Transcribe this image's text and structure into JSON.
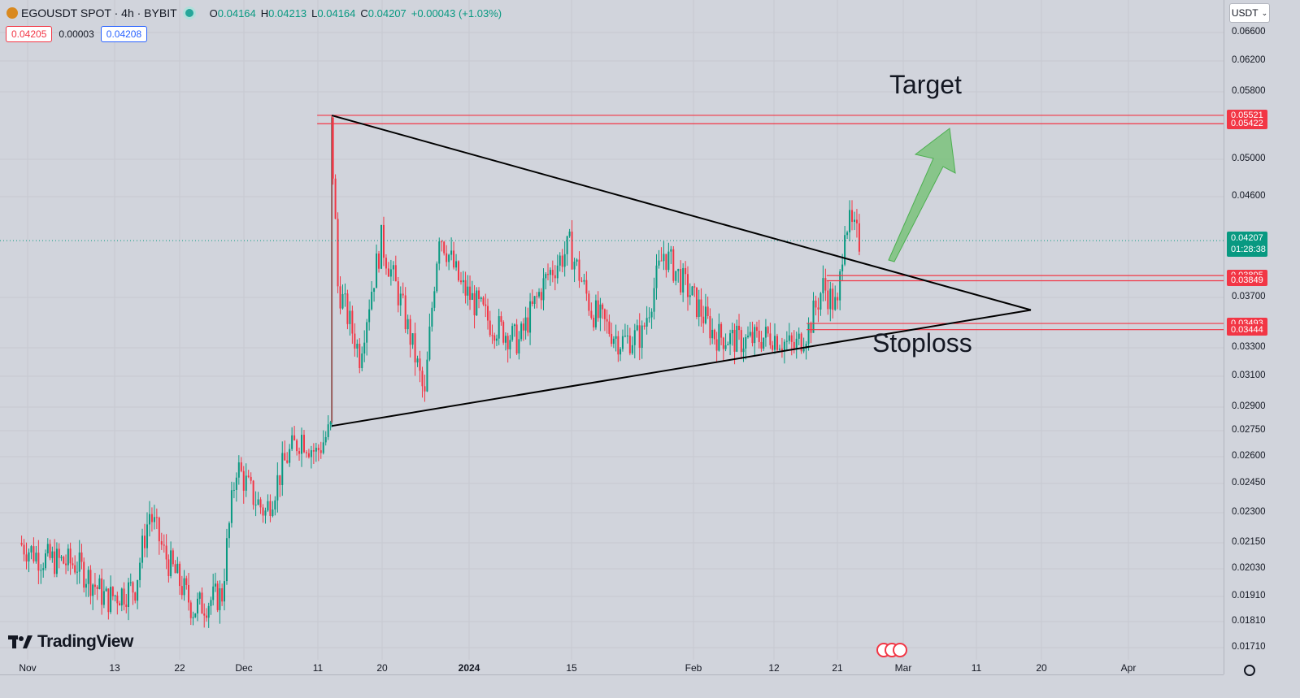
{
  "header": {
    "symbol": "EGOUSDT SPOT · 4h · BYBIT",
    "o_label": "O",
    "o": "0.04164",
    "h_label": "H",
    "h": "0.04213",
    "l_label": "L",
    "l": "0.04164",
    "c_label": "C",
    "c": "0.04207",
    "change": "+0.00043 (+1.03%)",
    "bid": "0.04205",
    "spread": "0.00003",
    "ask": "0.04208"
  },
  "currency": "USDT",
  "annotations": {
    "target": "Target",
    "stoploss": "Stoploss"
  },
  "logo": "TradingView",
  "current_price": "0.04207",
  "countdown": "01:28:38",
  "colors": {
    "up": "#089981",
    "down": "#f23645",
    "level": "#f23645",
    "arrow": "#6fc06f",
    "trend": "#000000"
  },
  "chart_data": {
    "type": "candlestick",
    "title": "",
    "xlabel": "",
    "ylabel": "",
    "ylim": [
      0.0165,
      0.0675
    ],
    "y_ticks": [
      "0.06600",
      "0.06200",
      "0.05800",
      "0.05000",
      "0.04600",
      "0.03700",
      "0.03300",
      "0.03100",
      "0.02900",
      "0.02750",
      "0.02600",
      "0.02450",
      "0.02300",
      "0.02150",
      "0.02030",
      "0.01910",
      "0.01810",
      "0.01710"
    ],
    "x_ticks": [
      "Nov",
      "13",
      "22",
      "Dec",
      "11",
      "20",
      "2024",
      "15",
      "Feb",
      "12",
      "21",
      "Mar",
      "11",
      "20",
      "Apr"
    ],
    "levels": [
      {
        "value": "0.05521"
      },
      {
        "value": "0.05422"
      },
      {
        "value": "0.03895"
      },
      {
        "value": "0.03849"
      },
      {
        "value": "0.03493"
      },
      {
        "value": "0.03444"
      }
    ],
    "trendlines": [
      {
        "from": [
          "Dec 13",
          0.0552
        ],
        "to": [
          "Feb 19",
          0.036
        ]
      },
      {
        "from": [
          "Dec 13",
          0.0278
        ],
        "to": [
          "Feb 19",
          0.036
        ]
      }
    ],
    "price_path": [
      [
        "Oct 31",
        0.0215
      ],
      [
        "Nov 3",
        0.0208
      ],
      [
        "Nov 8",
        0.0205
      ],
      [
        "Nov 12",
        0.019
      ],
      [
        "Nov 16",
        0.0195
      ],
      [
        "Nov 18",
        0.023
      ],
      [
        "Nov 20",
        0.021
      ],
      [
        "Nov 24",
        0.0186
      ],
      [
        "Nov 28",
        0.0192
      ],
      [
        "Nov 30",
        0.0255
      ],
      [
        "Dec 2",
        0.024
      ],
      [
        "Dec 4",
        0.023
      ],
      [
        "Dec 7",
        0.026
      ],
      [
        "Dec 9",
        0.0272
      ],
      [
        "Dec 11",
        0.0262
      ],
      [
        "Dec 13",
        0.0276
      ],
      [
        "Dec 13",
        0.054
      ],
      [
        "Dec 14",
        0.038
      ],
      [
        "Dec 17",
        0.0325
      ],
      [
        "Dec 20",
        0.042
      ],
      [
        "Dec 23",
        0.036
      ],
      [
        "Dec 26",
        0.0295
      ],
      [
        "Dec 28",
        0.043
      ],
      [
        "Dec 31",
        0.038
      ],
      [
        "Jan 4",
        0.035
      ],
      [
        "Jan 8",
        0.0335
      ],
      [
        "Jan 12",
        0.039
      ],
      [
        "Jan 15",
        0.0415
      ],
      [
        "Jan 18",
        0.036
      ],
      [
        "Jan 22",
        0.0335
      ],
      [
        "Jan 25",
        0.034
      ],
      [
        "Jan 28",
        0.041
      ],
      [
        "Jan 31",
        0.038
      ],
      [
        "Feb 4",
        0.034
      ],
      [
        "Feb 8",
        0.0335
      ],
      [
        "Feb 12",
        0.034
      ],
      [
        "Feb 15",
        0.033
      ],
      [
        "Feb 17",
        0.0345
      ],
      [
        "Feb 19",
        0.038
      ],
      [
        "Feb 21",
        0.036
      ],
      [
        "Feb 22",
        0.044
      ],
      [
        "Feb 24",
        0.042
      ]
    ]
  }
}
